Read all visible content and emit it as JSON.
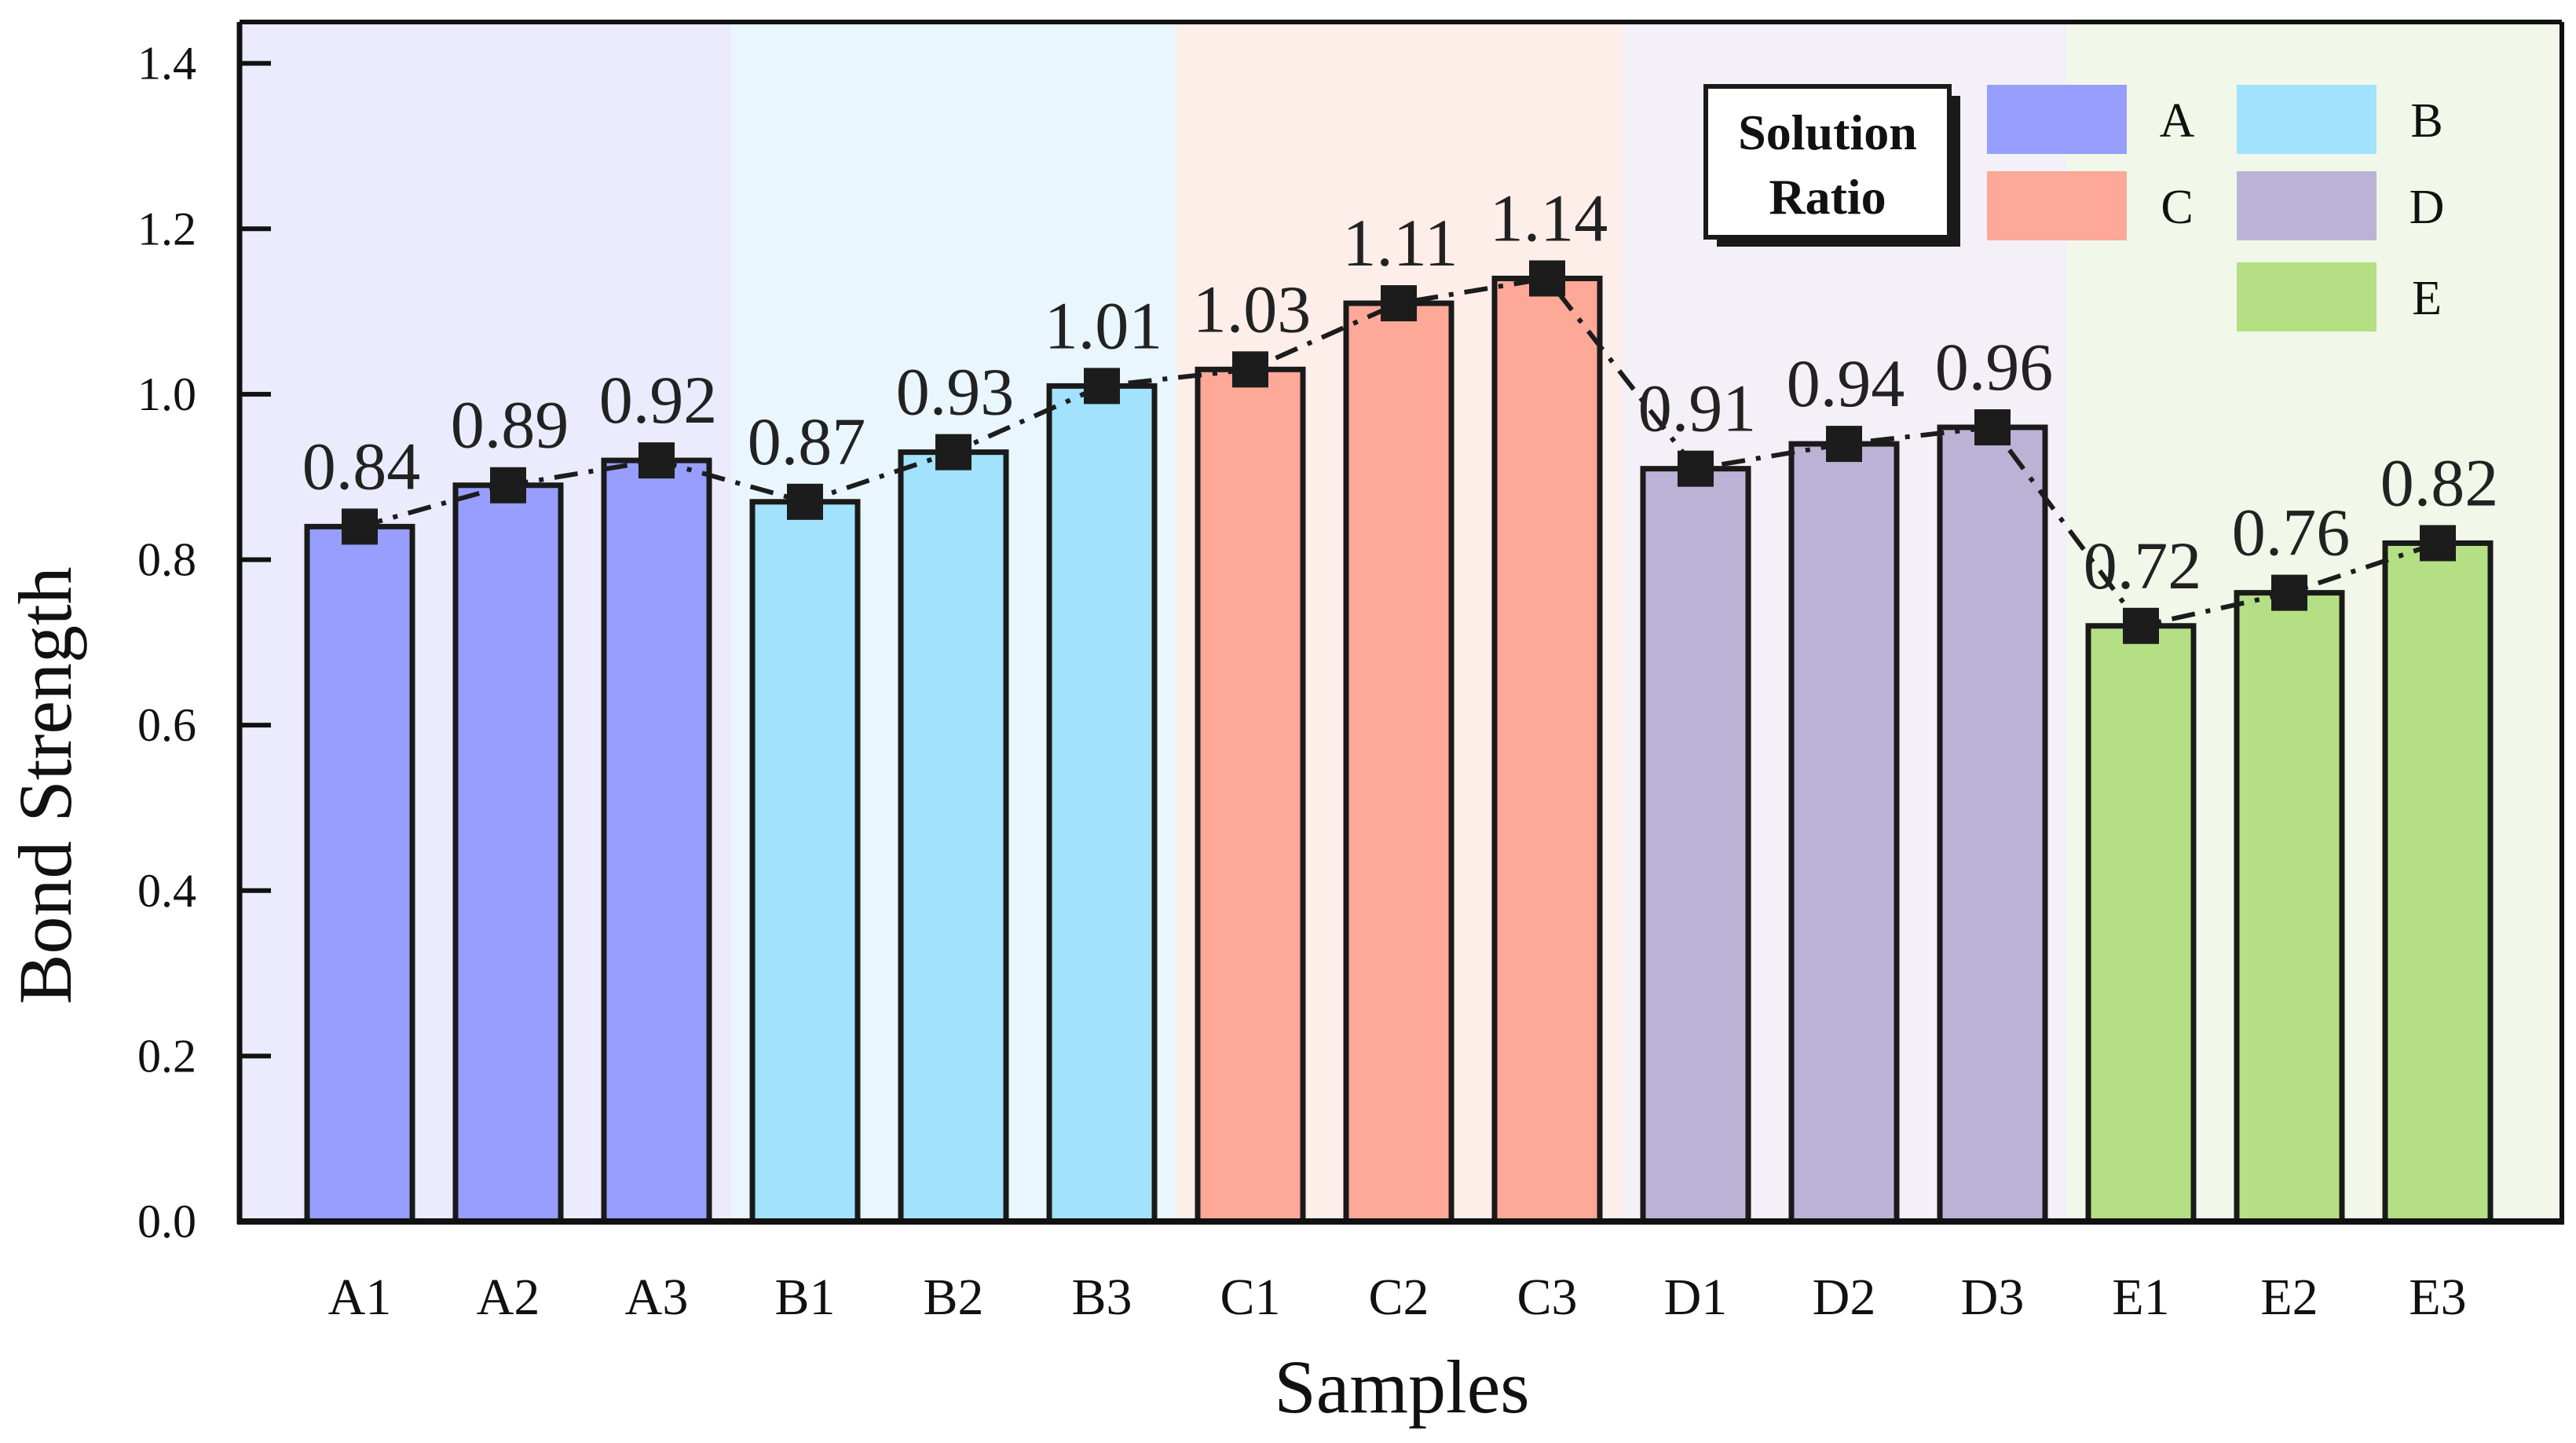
{
  "chart_data": {
    "type": "bar",
    "title": "",
    "xlabel": "Samples",
    "ylabel": "Bond Strength",
    "ylim": [
      0,
      1.45
    ],
    "yticks": [
      0.0,
      0.2,
      0.4,
      0.6,
      0.8,
      1.0,
      1.2,
      1.4
    ],
    "ytick_labels": [
      "0.0",
      "0.2",
      "0.4",
      "0.6",
      "0.8",
      "1.0",
      "1.2",
      "1.4"
    ],
    "categories": [
      "A1",
      "A2",
      "A3",
      "B1",
      "B2",
      "B3",
      "C1",
      "C2",
      "C3",
      "D1",
      "D2",
      "D3",
      "E1",
      "E2",
      "E3"
    ],
    "values": [
      0.84,
      0.89,
      0.92,
      0.87,
      0.93,
      1.01,
      1.03,
      1.11,
      1.14,
      0.91,
      0.94,
      0.96,
      0.72,
      0.76,
      0.82
    ],
    "data_labels": [
      "0.84",
      "0.89",
      "0.92",
      "0.87",
      "0.93",
      "1.01",
      "1.03",
      "1.11",
      "1.14",
      "0.91",
      "0.94",
      "0.96",
      "0.72",
      "0.76",
      "0.82"
    ],
    "groups": [
      {
        "name": "A",
        "members": [
          "A1",
          "A2",
          "A3"
        ],
        "bar_color": "#979efe",
        "band_color": "#ebebfd"
      },
      {
        "name": "B",
        "members": [
          "B1",
          "B2",
          "B3"
        ],
        "bar_color": "#a2e2fd",
        "band_color": "#e9f6fd"
      },
      {
        "name": "C",
        "members": [
          "C1",
          "C2",
          "C3"
        ],
        "bar_color": "#fea898",
        "band_color": "#fdeeea"
      },
      {
        "name": "D",
        "members": [
          "D1",
          "D2",
          "D3"
        ],
        "bar_color": "#bcb2d6",
        "band_color": "#f3f0f7"
      },
      {
        "name": "E",
        "members": [
          "E1",
          "E2",
          "E3"
        ],
        "bar_color": "#b5df85",
        "band_color": "#f1f8ea"
      }
    ],
    "line_overlay": {
      "style": "dash-dot",
      "marker": "square",
      "color": "#1c1c1c"
    },
    "legend": {
      "title_line1": "Solution",
      "title_line2": "Ratio",
      "position": "top-right",
      "entries": [
        "A",
        "B",
        "C",
        "D",
        "E"
      ]
    },
    "grid": false
  }
}
